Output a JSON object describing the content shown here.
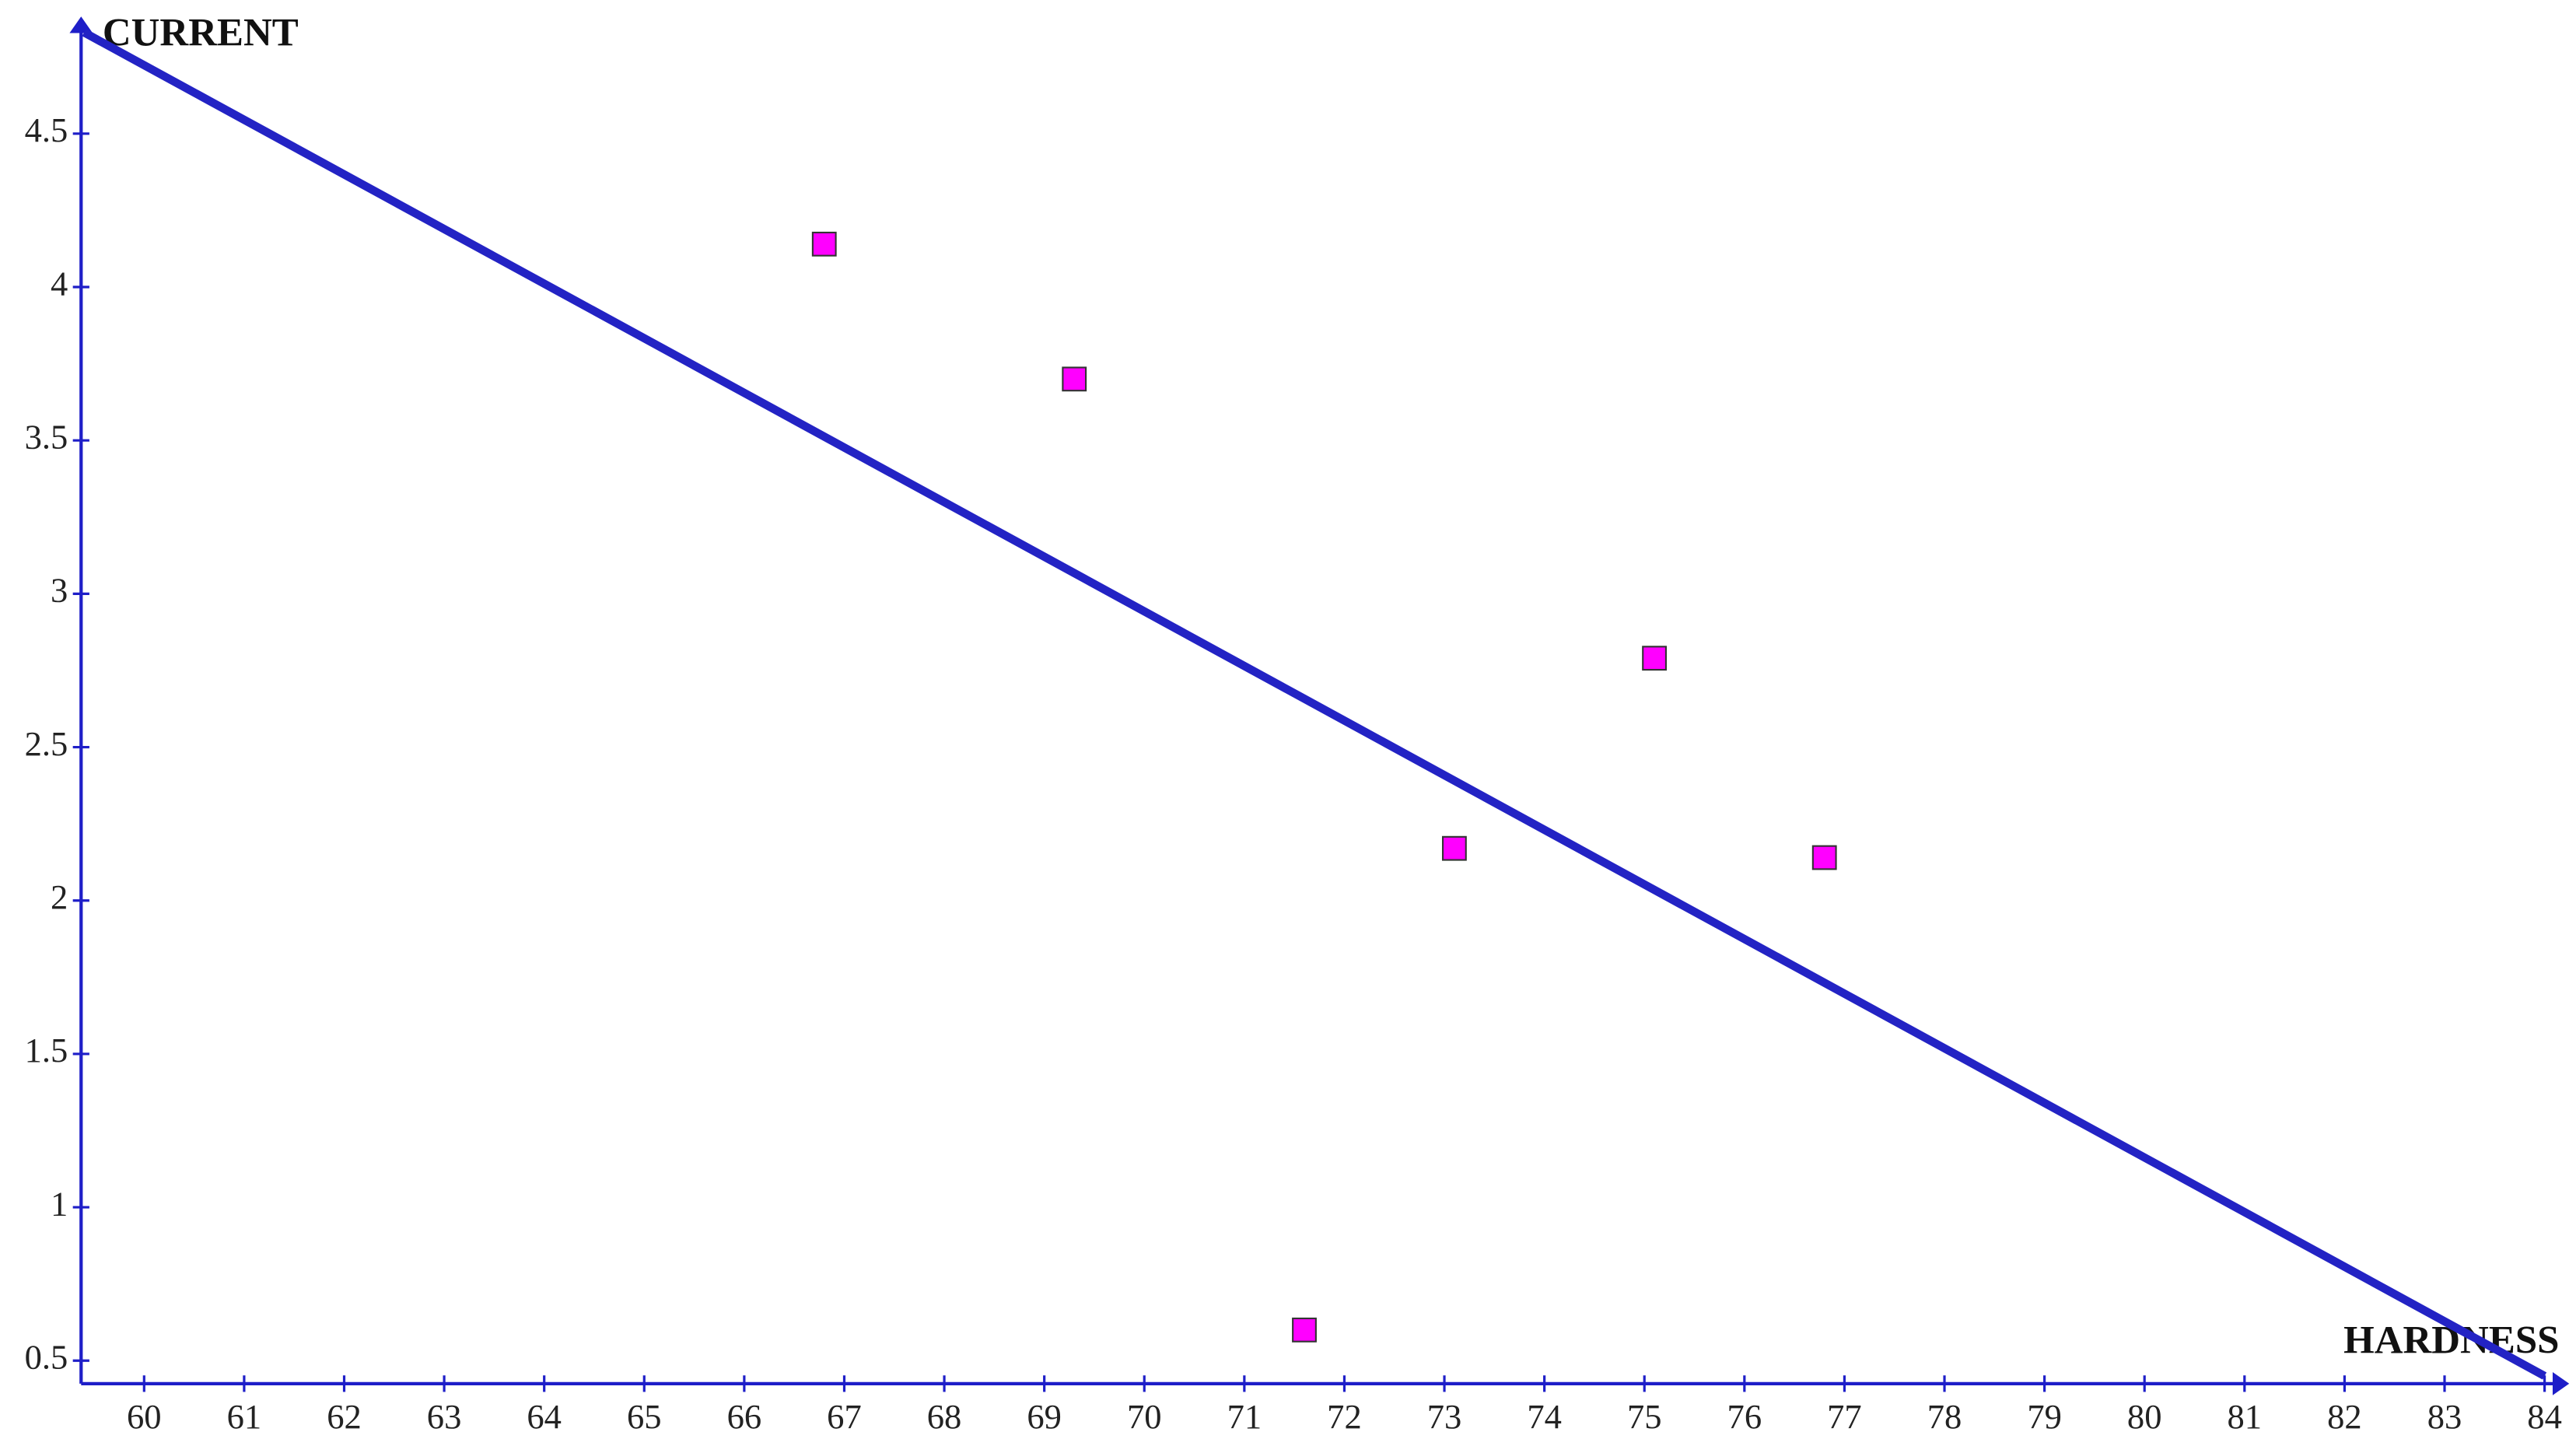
{
  "chart_data": {
    "type": "scatter",
    "x_label": "HARDNESS",
    "y_label": "CURRENT",
    "xlim": [
      59.37,
      84.18
    ],
    "ylim": [
      0.425,
      4.855
    ],
    "xticks": [
      60,
      61,
      62,
      63,
      64,
      65,
      66,
      67,
      68,
      69,
      70,
      71,
      72,
      73,
      74,
      75,
      76,
      77,
      78,
      79,
      80,
      81,
      82,
      83,
      84
    ],
    "yticks": [
      0.5,
      1,
      1.5,
      2,
      2.5,
      3,
      3.5,
      4,
      4.5
    ],
    "series": [
      {
        "color": "#ff00ff",
        "x": [
          66.8,
          69.3,
          71.6,
          73.1,
          75.1,
          76.8
        ],
        "values": [
          4.14,
          3.7,
          0.6,
          2.17,
          2.79,
          2.14
        ]
      }
    ],
    "trend_line": {
      "color": "#2323c4",
      "x": [
        59.4,
        84
      ],
      "values": [
        4.83,
        0.45
      ]
    }
  }
}
